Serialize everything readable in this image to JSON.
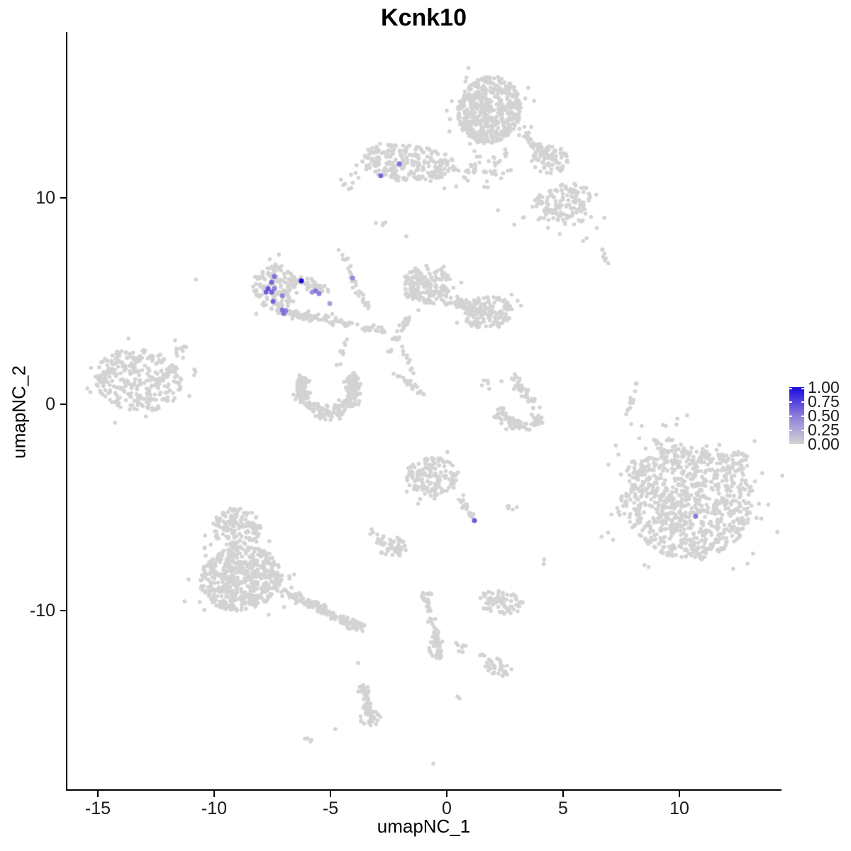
{
  "chart_data": {
    "type": "scatter",
    "title": "Kcnk10",
    "xlabel": "umapNC_1",
    "ylabel": "umapNC_2",
    "xlim": [
      -16.3,
      14.35
    ],
    "ylim": [
      -18.75,
      18.0
    ],
    "grid": false,
    "x_ticks": [
      {
        "value": -15,
        "label": "-15"
      },
      {
        "value": -10,
        "label": "-10"
      },
      {
        "value": -5,
        "label": "-5"
      },
      {
        "value": 0,
        "label": "0"
      },
      {
        "value": 5,
        "label": "5"
      },
      {
        "value": 10,
        "label": "10"
      }
    ],
    "y_ticks": [
      {
        "value": 10,
        "label": "10"
      },
      {
        "value": 0,
        "label": "0"
      },
      {
        "value": -10,
        "label": "-10"
      }
    ],
    "legend": {
      "position": "right",
      "entries": [
        {
          "label": "1.00",
          "value": 1.0
        },
        {
          "label": "0.75",
          "value": 0.75
        },
        {
          "label": "0.50",
          "value": 0.5
        },
        {
          "label": "0.25",
          "value": 0.25
        },
        {
          "label": "0.00",
          "value": 0.0
        }
      ],
      "low_color": "#D3D3D3",
      "mid_color": "#8C7CDB",
      "high_color": "#1A0ADE"
    },
    "base_point_color": "#D3D3D3",
    "clusters": [
      {
        "shape": "blob",
        "x": 1.83,
        "y": 14.26,
        "rx": 1.35,
        "ry": 1.65,
        "rot": -15,
        "n": 520
      },
      {
        "shape": "blob",
        "x": 4.42,
        "y": 11.86,
        "rx": 0.8,
        "ry": 0.7,
        "rot": 0,
        "n": 70
      },
      {
        "shape": "blob",
        "x": 4.94,
        "y": 9.79,
        "rx": 1.3,
        "ry": 0.85,
        "rot": 20,
        "n": 130
      },
      {
        "shape": "blob",
        "x": 1.6,
        "y": 11.3,
        "rx": 1.2,
        "ry": 0.8,
        "rot": 0,
        "n": 22
      },
      {
        "shape": "blob",
        "x": 5.1,
        "y": 8.7,
        "rx": 1.45,
        "ry": 0.85,
        "rot": -10,
        "n": 16
      },
      {
        "shape": "blob",
        "x": -1.68,
        "y": 11.68,
        "rx": 2.1,
        "ry": 0.9,
        "rot": -6,
        "n": 250
      },
      {
        "shape": "blob",
        "x": -4.12,
        "y": 10.72,
        "rx": 0.5,
        "ry": 0.42,
        "rot": 0,
        "n": 7
      },
      {
        "shape": "blob",
        "x": -7.38,
        "y": 5.64,
        "rx": 0.95,
        "ry": 1.15,
        "rot": 10,
        "n": 150
      },
      {
        "shape": "blob",
        "x": -0.85,
        "y": 5.77,
        "rx": 1.05,
        "ry": 0.95,
        "rot": 0,
        "n": 170
      },
      {
        "shape": "blob",
        "x": 1.77,
        "y": 4.43,
        "rx": 1.05,
        "ry": 0.8,
        "rot": 10,
        "n": 140
      },
      {
        "shape": "blob",
        "x": -13.26,
        "y": 1.17,
        "rx": 1.9,
        "ry": 1.5,
        "rot": -12,
        "n": 300
      },
      {
        "shape": "blob",
        "x": 10.43,
        "y": -4.71,
        "rx": 2.75,
        "ry": 2.8,
        "rot": 0,
        "n": 850
      },
      {
        "shape": "blob",
        "x": 12.5,
        "y": -2.75,
        "rx": 0.5,
        "ry": 0.45,
        "rot": 0,
        "n": 25
      },
      {
        "shape": "blob",
        "x": 8.23,
        "y": -3.09,
        "rx": 0.6,
        "ry": 0.5,
        "rot": 0,
        "n": 25
      },
      {
        "shape": "blob",
        "x": 9.3,
        "y": -1.89,
        "rx": 0.5,
        "ry": 0.4,
        "rot": 0,
        "n": 14
      },
      {
        "shape": "blob",
        "x": 7.77,
        "y": -4.98,
        "rx": 0.5,
        "ry": 0.6,
        "rot": 0,
        "n": 14
      },
      {
        "shape": "blob",
        "x": 10.82,
        "y": -7.22,
        "rx": 0.7,
        "ry": 0.4,
        "rot": 0,
        "n": 20
      },
      {
        "shape": "blob",
        "x": -0.61,
        "y": -3.51,
        "rx": 1.15,
        "ry": 0.95,
        "rot": -10,
        "n": 150
      },
      {
        "shape": "blob",
        "x": 2.87,
        "y": -5.05,
        "rx": 0.3,
        "ry": 0.22,
        "rot": 0,
        "n": 5
      },
      {
        "shape": "blob",
        "x": 4.18,
        "y": -7.66,
        "rx": 0.25,
        "ry": 0.18,
        "rot": 0,
        "n": 3
      },
      {
        "shape": "blob",
        "x": -2.41,
        "y": -6.87,
        "rx": 0.68,
        "ry": 0.5,
        "rot": -20,
        "n": 55
      },
      {
        "shape": "blob",
        "x": -3.14,
        "y": -6.25,
        "rx": 0.3,
        "ry": 0.25,
        "rot": 0,
        "n": 4
      },
      {
        "shape": "blob",
        "x": -9.05,
        "y": -5.98,
        "rx": 1.05,
        "ry": 0.95,
        "rot": 0,
        "n": 140
      },
      {
        "shape": "blob",
        "x": -8.84,
        "y": -8.45,
        "rx": 1.8,
        "ry": 1.55,
        "rot": 12,
        "n": 540
      },
      {
        "shape": "blob",
        "x": -3.9,
        "y": -10.75,
        "rx": 0.45,
        "ry": 0.3,
        "rot": -20,
        "n": 25
      },
      {
        "shape": "blob",
        "x": -0.95,
        "y": -9.3,
        "rx": 0.35,
        "ry": 0.28,
        "rot": 0,
        "n": 12
      },
      {
        "shape": "blob",
        "x": -0.37,
        "y": -11.86,
        "rx": 0.42,
        "ry": 0.55,
        "rot": 0,
        "n": 25
      },
      {
        "shape": "blob",
        "x": 0.55,
        "y": -11.72,
        "rx": 0.4,
        "ry": 0.25,
        "rot": -30,
        "n": 7
      },
      {
        "shape": "blob",
        "x": 2.32,
        "y": -9.59,
        "rx": 1.0,
        "ry": 0.55,
        "rot": -8,
        "n": 75
      },
      {
        "shape": "blob",
        "x": 2.2,
        "y": -12.75,
        "rx": 0.62,
        "ry": 0.4,
        "rot": -25,
        "n": 30
      },
      {
        "shape": "blob",
        "x": -3.3,
        "y": -15.2,
        "rx": 0.45,
        "ry": 0.38,
        "rot": 0,
        "n": 20
      },
      {
        "shape": "blob",
        "x": -2.8,
        "y": 8.87,
        "rx": 0.3,
        "ry": 0.25,
        "rot": 0,
        "n": 4
      },
      {
        "shape": "blob",
        "x": 1.98,
        "y": 1.03,
        "rx": 0.5,
        "ry": 0.35,
        "rot": 0,
        "n": 6
      },
      {
        "shape": "band",
        "x1": 3.2,
        "y1": 13.23,
        "x2": 4.33,
        "y2": 11.96,
        "w": 0.4,
        "n": 45
      },
      {
        "shape": "band",
        "x1": 0.3,
        "y1": 11.41,
        "x2": 2.13,
        "y2": 11.27,
        "w": 0.28,
        "n": 20
      },
      {
        "shape": "band",
        "x1": -6.77,
        "y1": 6.19,
        "x2": -5.12,
        "y2": 5.57,
        "w": 0.45,
        "n": 55
      },
      {
        "shape": "band",
        "x1": -7.16,
        "y1": 4.47,
        "x2": -4.88,
        "y2": 4.05,
        "w": 0.4,
        "n": 65
      },
      {
        "shape": "band",
        "x1": -4.88,
        "y1": 4.05,
        "x2": -2.59,
        "y2": 3.51,
        "w": 0.3,
        "n": 32
      },
      {
        "shape": "band",
        "x1": -4.63,
        "y1": 7.56,
        "x2": -3.41,
        "y2": 4.54,
        "w": 0.28,
        "n": 30
      },
      {
        "shape": "band",
        "x1": 0.0,
        "y1": 5.15,
        "x2": 1.16,
        "y2": 4.6,
        "w": 0.5,
        "n": 50
      },
      {
        "shape": "band",
        "x1": -1.68,
        "y1": 4.19,
        "x2": -2.5,
        "y2": 2.51,
        "w": 0.32,
        "n": 30
      },
      {
        "shape": "band",
        "x1": -2.13,
        "y1": 3.26,
        "x2": -1.28,
        "y2": 0.86,
        "w": 0.3,
        "n": 14
      },
      {
        "shape": "band",
        "x1": -2.44,
        "y1": 1.65,
        "x2": -0.91,
        "y2": 0.41,
        "w": 0.2,
        "n": 20
      },
      {
        "shape": "band",
        "x1": -11.74,
        "y1": 2.41,
        "x2": -11.22,
        "y2": 2.82,
        "w": 0.28,
        "n": 10
      },
      {
        "shape": "band",
        "x1": -4.63,
        "y1": 1.79,
        "x2": -4.33,
        "y2": 3.16,
        "w": 0.22,
        "n": 10
      },
      {
        "shape": "band",
        "x1": 2.84,
        "y1": 1.34,
        "x2": 3.84,
        "y2": -0.21,
        "w": 0.4,
        "n": 45
      },
      {
        "shape": "band",
        "x1": 8.14,
        "y1": 1.0,
        "x2": 7.77,
        "y2": -0.69,
        "w": 0.16,
        "n": 13
      },
      {
        "shape": "band",
        "x1": 6.68,
        "y1": 7.53,
        "x2": 6.89,
        "y2": 6.8,
        "w": 0.16,
        "n": 7
      },
      {
        "shape": "band",
        "x1": 0.46,
        "y1": -4.36,
        "x2": 1.13,
        "y2": -5.5,
        "w": 0.28,
        "n": 22
      },
      {
        "shape": "band",
        "x1": -7.01,
        "y1": -9.04,
        "x2": -3.78,
        "y2": -10.79,
        "w": 0.4,
        "n": 130
      },
      {
        "shape": "band",
        "x1": -0.88,
        "y1": -9.38,
        "x2": -0.27,
        "y2": -12.23,
        "w": 0.28,
        "n": 55
      },
      {
        "shape": "band",
        "x1": 1.4,
        "y1": -12.1,
        "x2": 1.89,
        "y2": -12.44,
        "w": 0.13,
        "n": 5
      },
      {
        "shape": "band",
        "x1": -3.6,
        "y1": -13.61,
        "x2": -3.23,
        "y2": -15.4,
        "w": 0.36,
        "n": 55
      },
      {
        "shape": "band",
        "x1": -6.16,
        "y1": -16.08,
        "x2": -5.79,
        "y2": -16.39,
        "w": 0.14,
        "n": 4
      },
      {
        "shape": "arc",
        "x": -5.09,
        "y": 0.76,
        "r": 1.15,
        "w": 0.6,
        "a1": 150,
        "a2": 395,
        "n": 270
      },
      {
        "shape": "arc",
        "x": 3.26,
        "y": -0.1,
        "r": 0.95,
        "w": 0.48,
        "a1": 185,
        "a2": 330,
        "n": 85
      }
    ],
    "single_points": [
      [
        -10.79,
        6.05
      ],
      [
        -3.81,
        -12.54
      ],
      [
        -4.79,
        -15.74
      ],
      [
        -0.58,
        -17.42
      ],
      [
        6.77,
        9.04
      ],
      [
        7.38,
        -2.44
      ],
      [
        6.95,
        -2.92
      ],
      [
        7.93,
        -0.96
      ],
      [
        -11.68,
        3.09
      ],
      [
        -1.74,
        8.14
      ],
      [
        0.46,
        -14.16
      ],
      [
        0.55,
        -14.25
      ],
      [
        2.2,
        9.4
      ],
      [
        2.9,
        8.7
      ]
    ],
    "expressing_cells": [
      {
        "x": -7.41,
        "y": 6.19,
        "value": 0.55
      },
      {
        "x": -7.53,
        "y": 5.91,
        "value": 0.6
      },
      {
        "x": -7.68,
        "y": 5.6,
        "value": 0.68
      },
      {
        "x": -7.53,
        "y": 5.43,
        "value": 0.62
      },
      {
        "x": -7.77,
        "y": 5.43,
        "value": 0.62
      },
      {
        "x": -7.41,
        "y": 5.6,
        "value": 0.5
      },
      {
        "x": -7.07,
        "y": 5.26,
        "value": 0.45
      },
      {
        "x": -7.47,
        "y": 4.98,
        "value": 0.6
      },
      {
        "x": -7.07,
        "y": 4.57,
        "value": 0.55
      },
      {
        "x": -6.92,
        "y": 4.54,
        "value": 0.5
      },
      {
        "x": -7.01,
        "y": 4.4,
        "value": 0.55
      },
      {
        "x": -6.25,
        "y": 5.98,
        "value": 1.0
      },
      {
        "x": -5.79,
        "y": 5.43,
        "value": 0.38
      },
      {
        "x": -5.64,
        "y": 5.5,
        "value": 0.52
      },
      {
        "x": -5.49,
        "y": 5.36,
        "value": 0.5
      },
      {
        "x": -5.03,
        "y": 4.88,
        "value": 0.3
      },
      {
        "x": -4.05,
        "y": 6.12,
        "value": 0.42
      },
      {
        "x": -2.04,
        "y": 11.65,
        "value": 0.55
      },
      {
        "x": -2.84,
        "y": 11.07,
        "value": 0.6
      },
      {
        "x": 1.19,
        "y": -5.64,
        "value": 0.65
      },
      {
        "x": 10.7,
        "y": -5.43,
        "value": 0.5
      }
    ]
  }
}
